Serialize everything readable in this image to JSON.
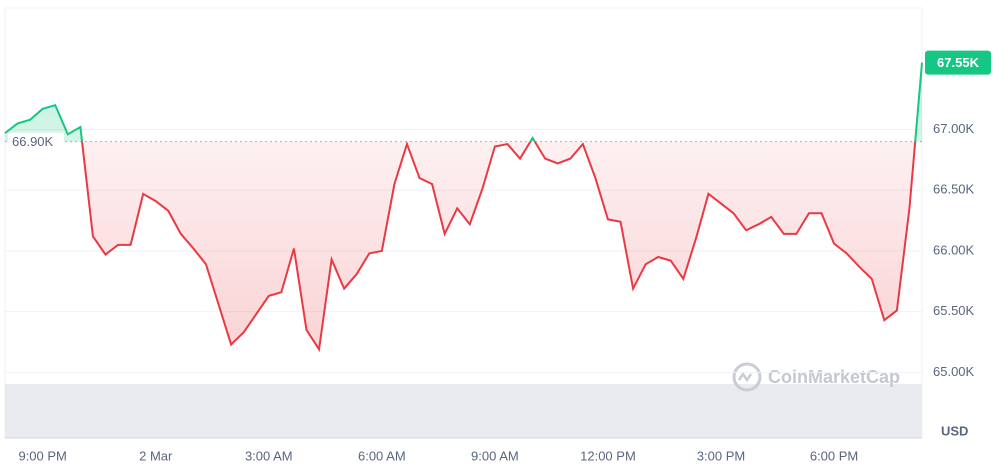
{
  "chart_data": {
    "type": "line",
    "categories": [
      null,
      null,
      null,
      "9:00 PM",
      null,
      null,
      null,
      null,
      null,
      null,
      null,
      null,
      "2 Mar",
      null,
      null,
      null,
      null,
      null,
      null,
      null,
      null,
      "3:00 AM",
      null,
      null,
      null,
      null,
      null,
      null,
      null,
      null,
      "6:00 AM",
      null,
      null,
      null,
      null,
      null,
      null,
      null,
      null,
      "9:00 AM",
      null,
      null,
      null,
      null,
      null,
      null,
      null,
      null,
      "12:00 PM",
      null,
      null,
      null,
      null,
      null,
      null,
      null,
      null,
      "3:00 PM",
      null,
      null,
      null,
      null,
      null,
      null,
      null,
      null,
      "6:00 PM",
      null,
      null,
      null,
      null,
      null,
      null,
      null
    ],
    "values": [
      66970,
      67050,
      67080,
      67170,
      67200,
      66960,
      67020,
      66120,
      65970,
      66050,
      66050,
      66470,
      66410,
      66330,
      66140,
      66020,
      65890,
      65560,
      65230,
      65330,
      65480,
      65630,
      65660,
      66020,
      65350,
      65190,
      65930,
      65690,
      65810,
      65980,
      66000,
      66550,
      66880,
      66600,
      66550,
      66140,
      66350,
      66220,
      66510,
      66860,
      66880,
      66760,
      66930,
      66760,
      66720,
      66760,
      66880,
      66600,
      66260,
      66240,
      65690,
      65890,
      65950,
      65920,
      65770,
      66100,
      66470,
      66390,
      66310,
      66170,
      66220,
      66280,
      66140,
      66140,
      66310,
      66310,
      66060,
      65980,
      65870,
      65770,
      65430,
      65510,
      66350,
      67550
    ],
    "up_color": "#16c784",
    "down_color": "#ea3943",
    "baseline": {
      "value": 66900,
      "label": "66.90K"
    },
    "last_price": {
      "value": 67550,
      "label": "67.55K"
    },
    "ylim": [
      64460,
      68000
    ],
    "yticks": [
      {
        "value": 65000,
        "label": "65.00K"
      },
      {
        "value": 65500,
        "label": "65.50K"
      },
      {
        "value": 66000,
        "label": "66.00K"
      },
      {
        "value": 66500,
        "label": "66.50K"
      },
      {
        "value": 67000,
        "label": "67.00K"
      }
    ],
    "y_label": "USD",
    "watermark": "CoinMarketCap",
    "grid": true
  }
}
